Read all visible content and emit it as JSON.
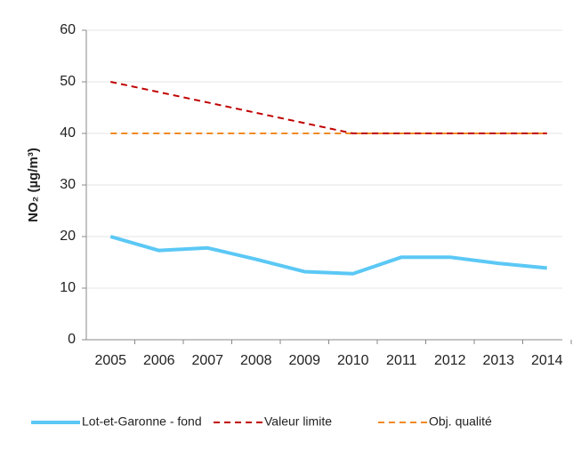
{
  "chart_data": {
    "type": "line",
    "ylabel": "NO₂ (µg/m³)",
    "categories": [
      "2005",
      "2006",
      "2007",
      "2008",
      "2009",
      "2010",
      "2011",
      "2012",
      "2013",
      "2014"
    ],
    "series": [
      {
        "name": "Lot-et-Garonne - fond",
        "color": "#5bc8f5",
        "style": "solid",
        "values": [
          20,
          17.3,
          17.8,
          15.6,
          13.2,
          12.8,
          16,
          16,
          14.8,
          13.9
        ]
      },
      {
        "name": "Valeur limite",
        "color": "#c00000",
        "style": "dashed",
        "values": [
          50,
          48,
          46,
          44,
          42,
          40,
          40,
          40,
          40,
          40
        ]
      },
      {
        "name": "Obj. qualité",
        "color": "#f08a24",
        "style": "dashed",
        "values": [
          40,
          40,
          40,
          40,
          40,
          40,
          40,
          40,
          40,
          40
        ]
      }
    ],
    "ylim": [
      0,
      60
    ],
    "yticks": [
      0,
      10,
      20,
      30,
      40,
      50,
      60
    ],
    "grid": true,
    "legend": "bottom"
  }
}
